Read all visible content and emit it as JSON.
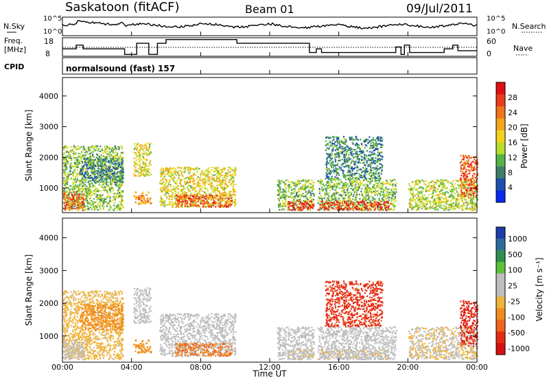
{
  "header": {
    "station": "Saskatoon (fitACF)",
    "beam": "Beam 01",
    "date": "09/Jul/2011"
  },
  "summary": {
    "nsky_label": "N.Sky",
    "nsky_ticks": [
      "10^5",
      "10^0"
    ],
    "nsearch_label": "N.Search",
    "nsearch_ticks": [
      "10^5",
      "10^0"
    ],
    "freq_label": "Freq.",
    "freq_unit": "[MHz]",
    "freq_ticks": [
      "18",
      "8"
    ],
    "nave_label": "Nave",
    "nave_ticks": [
      "60",
      "0"
    ],
    "cpid_label": "CPID",
    "cpid_text": "normalsound (fast) 157"
  },
  "axes": {
    "xlabel": "Time UT",
    "x_ticks": [
      "00:00",
      "04:00",
      "08:00",
      "12:00",
      "16:00",
      "20:00",
      "00:00"
    ],
    "ylabel": "Slant Range [km]",
    "y_ticks": [
      "1000",
      "2000",
      "3000",
      "4000"
    ]
  },
  "power_scale": {
    "label": "Power [dB]",
    "ticks": [
      "4",
      "8",
      "12",
      "16",
      "20",
      "24",
      "28"
    ],
    "colors": [
      "#0a28f0",
      "#1c4fb0",
      "#3f7e6c",
      "#56b24a",
      "#b9dc2c",
      "#f2d21c",
      "#f5a41c",
      "#f0741c",
      "#ec3c1c",
      "#e01010"
    ]
  },
  "velocity_scale": {
    "label": "Velocity [m s⁻¹]",
    "ticks": [
      "1000",
      "500",
      "100",
      "25",
      "-25",
      "-100",
      "-500",
      "-1000"
    ],
    "colors": [
      "#1e3ca8",
      "#2c6c9c",
      "#2f8f52",
      "#5cc03c",
      "#bebebe",
      "#bebebe",
      "#f0b43c",
      "#f08c1c",
      "#f0641c",
      "#e42c14",
      "#d81010"
    ]
  },
  "chart_data": {
    "type": "heatmap",
    "x_range_hours": [
      0,
      24
    ],
    "y_range_km": [
      200,
      4600
    ],
    "frequency_mhz": [
      [
        0.0,
        12
      ],
      [
        0.8,
        12
      ],
      [
        0.8,
        14
      ],
      [
        1.2,
        14
      ],
      [
        1.2,
        12
      ],
      [
        3.6,
        12
      ],
      [
        3.6,
        9
      ],
      [
        4.3,
        9
      ],
      [
        4.3,
        15
      ],
      [
        5.0,
        15
      ],
      [
        5.0,
        9
      ],
      [
        5.5,
        9
      ],
      [
        5.5,
        15
      ],
      [
        6.0,
        15
      ],
      [
        6.0,
        17
      ],
      [
        10.1,
        17
      ],
      [
        10.1,
        15
      ],
      [
        14.3,
        15
      ],
      [
        14.3,
        10
      ],
      [
        14.7,
        10
      ],
      [
        14.7,
        12
      ],
      [
        15.0,
        12
      ],
      [
        15.0,
        10
      ],
      [
        19.3,
        10
      ],
      [
        19.3,
        13
      ],
      [
        19.6,
        13
      ],
      [
        19.6,
        9
      ],
      [
        19.8,
        9
      ],
      [
        19.8,
        14
      ],
      [
        20.1,
        14
      ],
      [
        20.1,
        10
      ],
      [
        22.1,
        10
      ],
      [
        22.1,
        12
      ],
      [
        22.6,
        12
      ],
      [
        22.6,
        14
      ],
      [
        22.9,
        14
      ],
      [
        22.9,
        11
      ],
      [
        24.0,
        11
      ]
    ],
    "data_gaps_hours": [
      [
        3.55,
        4.1
      ],
      [
        5.15,
        5.55
      ],
      [
        11.95,
        12.35
      ],
      [
        14.55,
        14.75
      ],
      [
        19.35,
        19.55
      ],
      [
        19.75,
        19.95
      ]
    ],
    "echo_regions": [
      {
        "t": [
          0.0,
          3.5
        ],
        "range_km": [
          300,
          2400
        ],
        "power_db": 14,
        "velocity": -50
      },
      {
        "t": [
          0.0,
          1.2
        ],
        "range_km": [
          300,
          900
        ],
        "power_db": 26,
        "velocity": 10
      },
      {
        "t": [
          1.0,
          3.5
        ],
        "range_km": [
          1200,
          2000
        ],
        "power_db": 10,
        "velocity": -200
      },
      {
        "t": [
          4.1,
          5.1
        ],
        "range_km": [
          1400,
          2500
        ],
        "power_db": 18,
        "velocity": 5
      },
      {
        "t": [
          4.1,
          5.1
        ],
        "range_km": [
          500,
          900
        ],
        "power_db": 22,
        "velocity": -150
      },
      {
        "t": [
          5.6,
          10.0
        ],
        "range_km": [
          400,
          1700
        ],
        "power_db": 18,
        "velocity": 60
      },
      {
        "t": [
          6.5,
          9.8
        ],
        "range_km": [
          400,
          800
        ],
        "power_db": 26,
        "velocity": -300
      },
      {
        "t": [
          12.4,
          19.3
        ],
        "range_km": [
          300,
          1300
        ],
        "power_db": 14,
        "velocity": 5
      },
      {
        "t": [
          13.0,
          19.0
        ],
        "range_km": [
          300,
          600
        ],
        "power_db": 28,
        "velocity": -10
      },
      {
        "t": [
          15.2,
          18.5
        ],
        "range_km": [
          1300,
          2700
        ],
        "power_db": 10,
        "velocity": -700
      },
      {
        "t": [
          20.0,
          24.0
        ],
        "range_km": [
          300,
          1300
        ],
        "power_db": 16,
        "velocity": -20
      },
      {
        "t": [
          23.0,
          24.0
        ],
        "range_km": [
          700,
          2100
        ],
        "power_db": 26,
        "velocity": -900
      }
    ]
  }
}
